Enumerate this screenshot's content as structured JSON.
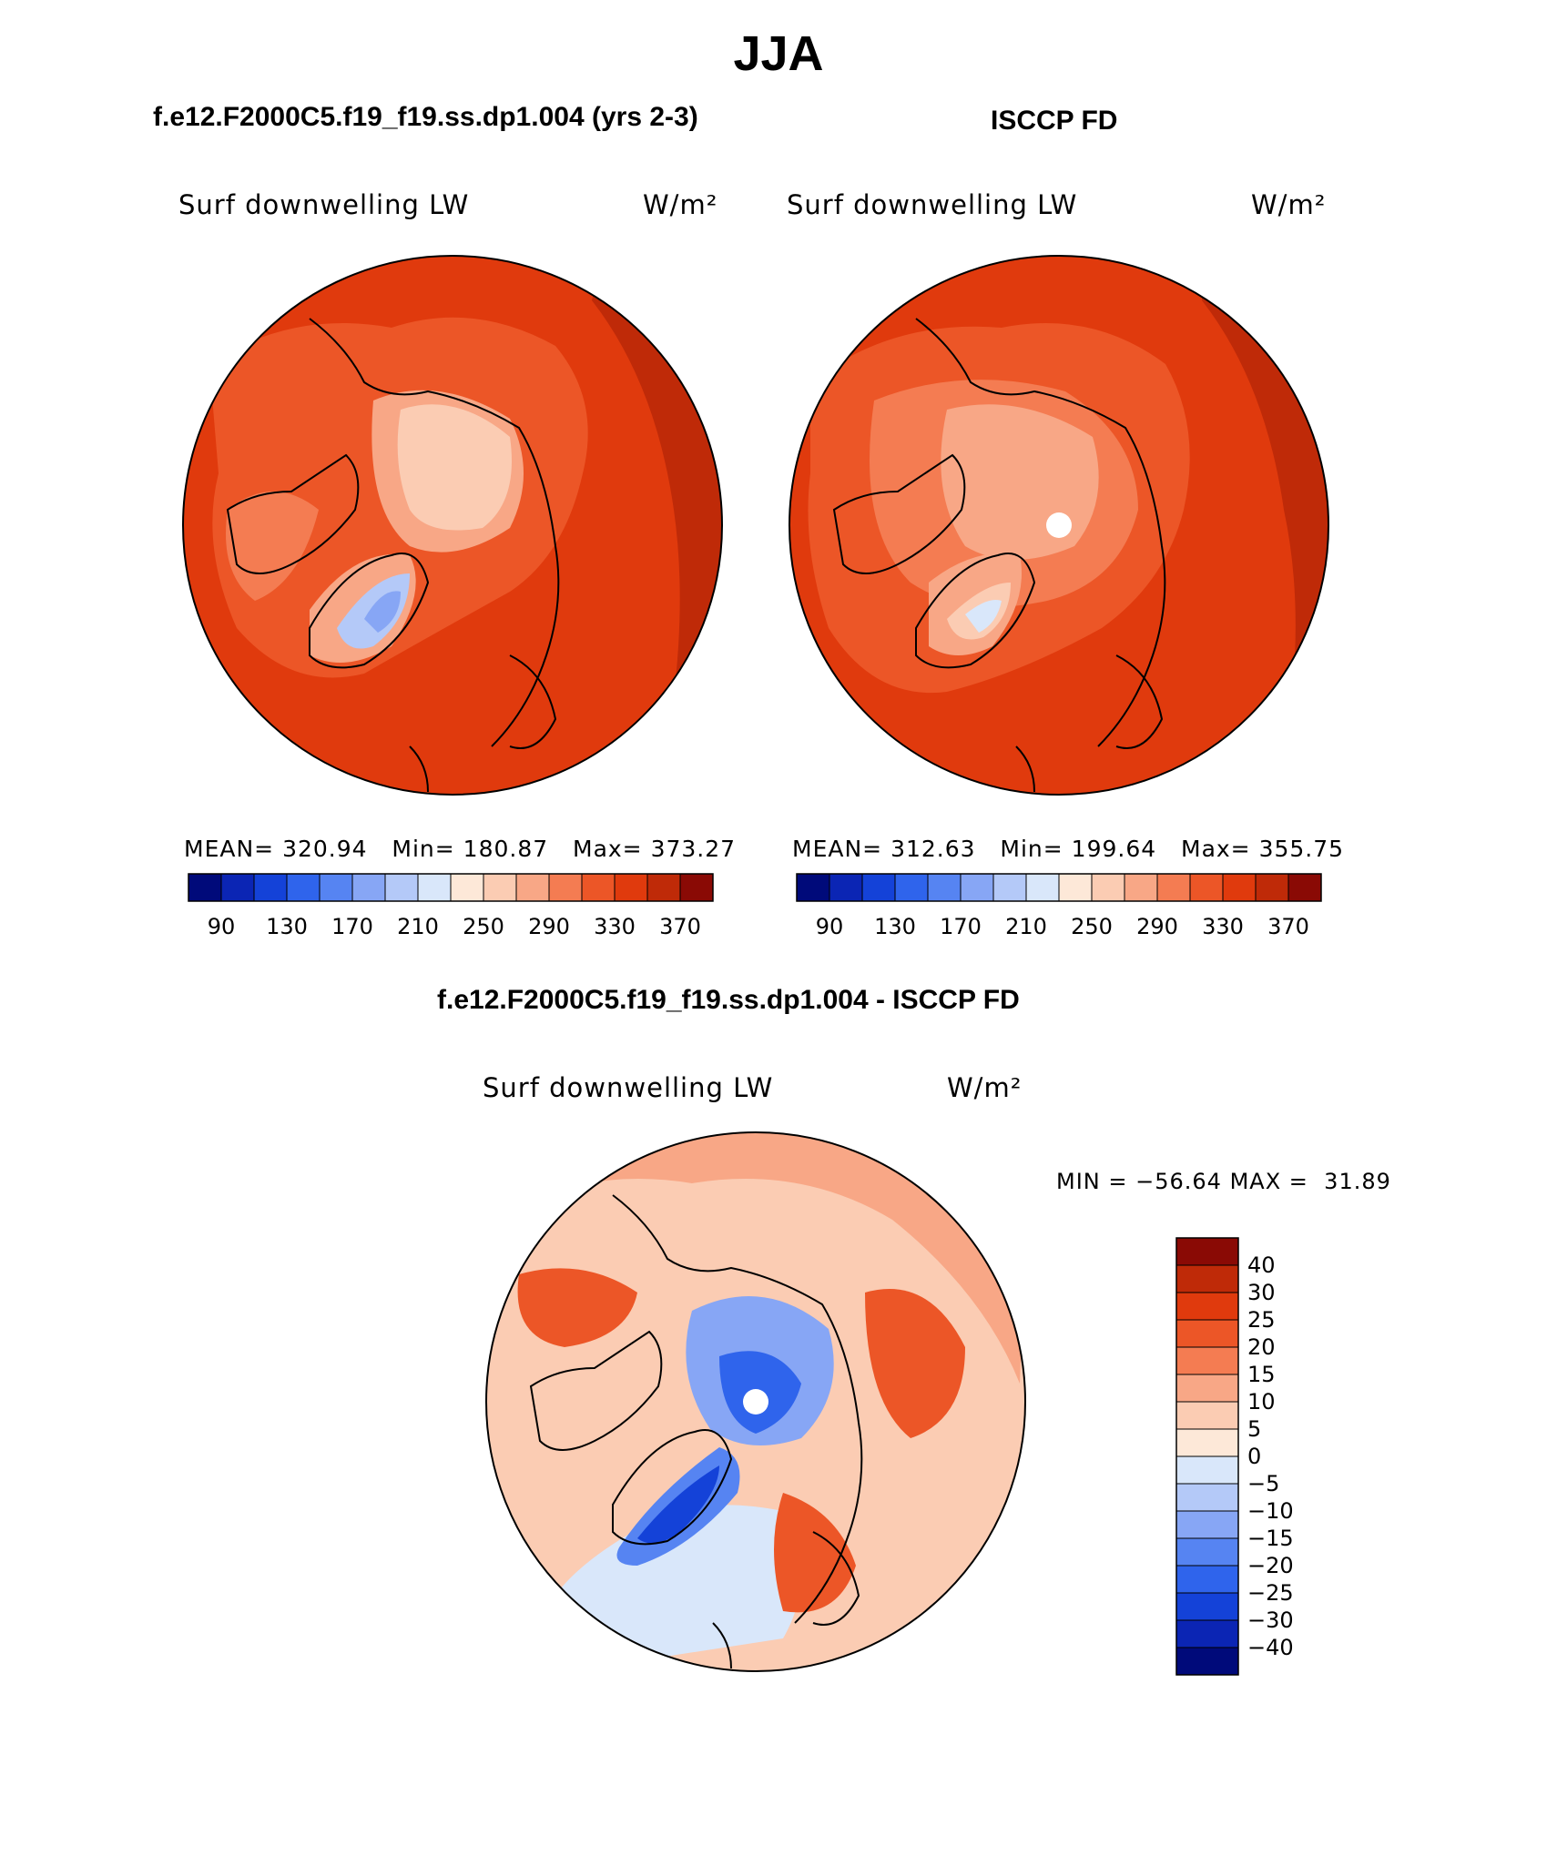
{
  "chart_data": [
    {
      "type": "heatmap",
      "projection": "north-polar-stereographic",
      "season_title": "JJA",
      "title": "f.e12.F2000C5.f19_f19.ss.dp1.004 (yrs 2-3)",
      "variable": "Surf downwelling LW",
      "units": "W/m²",
      "stats": {
        "mean_label": "MEAN=",
        "mean": "320.94",
        "min_label": "Min=",
        "min": "180.87",
        "max_label": "Max=",
        "max": "373.27"
      },
      "colorbar": {
        "tick_labels": [
          "90",
          "130",
          "170",
          "210",
          "250",
          "290",
          "330",
          "370"
        ],
        "colors": [
          "#000a7a",
          "#0b25b4",
          "#1442d8",
          "#2f64ec",
          "#5684f2",
          "#87a6f5",
          "#b4c9f8",
          "#d9e7fa",
          "#fde8d8",
          "#fbccb3",
          "#f8a786",
          "#f47c52",
          "#ec5627",
          "#e03a0d",
          "#bf2a08",
          "#8a0a05"
        ]
      }
    },
    {
      "type": "heatmap",
      "projection": "north-polar-stereographic",
      "title": "ISCCP FD",
      "variable": "Surf downwelling LW",
      "units": "W/m²",
      "stats": {
        "mean_label": "MEAN=",
        "mean": "312.63",
        "min_label": "Min=",
        "min": "199.64",
        "max_label": "Max=",
        "max": "355.75"
      },
      "colorbar": {
        "tick_labels": [
          "90",
          "130",
          "170",
          "210",
          "250",
          "290",
          "330",
          "370"
        ],
        "colors": [
          "#000a7a",
          "#0b25b4",
          "#1442d8",
          "#2f64ec",
          "#5684f2",
          "#87a6f5",
          "#b4c9f8",
          "#d9e7fa",
          "#fde8d8",
          "#fbccb3",
          "#f8a786",
          "#f47c52",
          "#ec5627",
          "#e03a0d",
          "#bf2a08",
          "#8a0a05"
        ]
      }
    },
    {
      "type": "heatmap",
      "projection": "north-polar-stereographic",
      "title": "f.e12.F2000C5.f19_f19.ss.dp1.004 - ISCCP FD",
      "variable": "Surf downwelling LW",
      "units": "W/m²",
      "stats": {
        "min_label": "MIN =",
        "min": "-56.64",
        "max_label": "MAX =",
        "max": "31.89"
      },
      "colorbar": {
        "tick_labels": [
          "40",
          "30",
          "25",
          "20",
          "15",
          "10",
          "5",
          "0",
          "-5",
          "-10",
          "-15",
          "-20",
          "-25",
          "-30",
          "-40"
        ],
        "colors": [
          "#8a0a05",
          "#bf2a08",
          "#e03a0d",
          "#ec5627",
          "#f47c52",
          "#f8a786",
          "#fbccb3",
          "#fde8d8",
          "#d9e7fa",
          "#b4c9f8",
          "#87a6f5",
          "#5684f2",
          "#2f64ec",
          "#1442d8",
          "#0b25b4",
          "#000a7a"
        ]
      }
    }
  ]
}
